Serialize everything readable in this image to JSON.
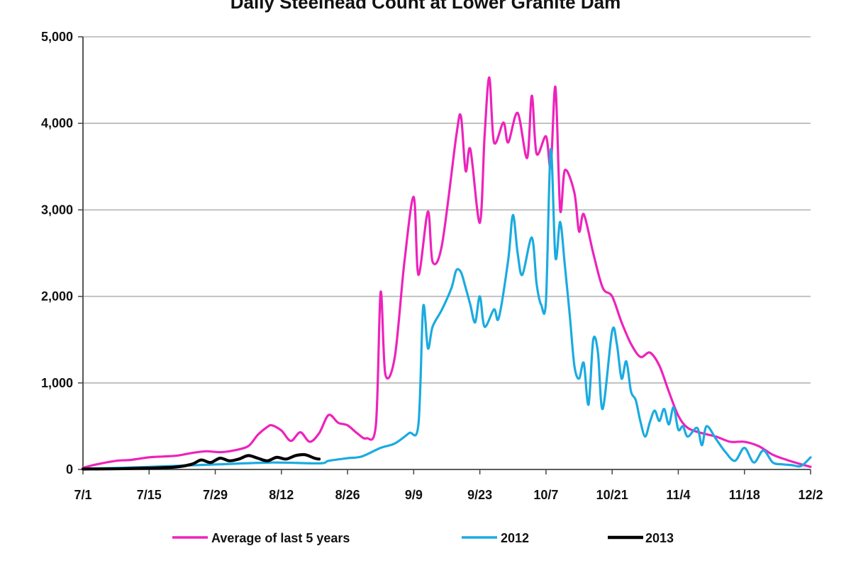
{
  "chart_data": {
    "type": "line",
    "title": "Daily Steelhead Count at Lower Granite Dam",
    "xlabel": "",
    "ylabel": "",
    "x_start_date": "7/1",
    "x_end_date": "12/2",
    "x_tick_labels": [
      "7/1",
      "7/15",
      "7/29",
      "8/12",
      "8/26",
      "9/9",
      "9/23",
      "10/7",
      "10/21",
      "11/4",
      "11/18",
      "12/2"
    ],
    "y_tick_labels": [
      "0",
      "1,000",
      "2,000",
      "3,000",
      "4,000",
      "5,000"
    ],
    "ylim": [
      0,
      5000
    ],
    "grid": "horizontal",
    "legend_position": "bottom",
    "colors": {
      "average": "#ee22bb",
      "s2012": "#1aabe0",
      "s2013": "#000000",
      "grid": "#b4b4b4",
      "axis": "#444444"
    },
    "series": [
      {
        "name": "Average of last 5 years",
        "color": "#ee22bb",
        "points": [
          [
            "7/1",
            20
          ],
          [
            "7/4",
            60
          ],
          [
            "7/8",
            100
          ],
          [
            "7/11",
            110
          ],
          [
            "7/15",
            140
          ],
          [
            "7/18",
            150
          ],
          [
            "7/21",
            160
          ],
          [
            "7/24",
            190
          ],
          [
            "7/27",
            210
          ],
          [
            "7/30",
            200
          ],
          [
            "8/2",
            220
          ],
          [
            "8/5",
            270
          ],
          [
            "8/7",
            400
          ],
          [
            "8/9",
            490
          ],
          [
            "8/10",
            510
          ],
          [
            "8/12",
            450
          ],
          [
            "8/14",
            330
          ],
          [
            "8/16",
            430
          ],
          [
            "8/18",
            320
          ],
          [
            "8/20",
            420
          ],
          [
            "8/22",
            630
          ],
          [
            "8/24",
            540
          ],
          [
            "8/26",
            510
          ],
          [
            "8/28",
            420
          ],
          [
            "8/30",
            360
          ],
          [
            "9/1",
            520
          ],
          [
            "9/2",
            2050
          ],
          [
            "9/3",
            1100
          ],
          [
            "9/5",
            1300
          ],
          [
            "9/7",
            2380
          ],
          [
            "9/9",
            3150
          ],
          [
            "9/10",
            2250
          ],
          [
            "9/12",
            2980
          ],
          [
            "9/13",
            2400
          ],
          [
            "9/15",
            2600
          ],
          [
            "9/18",
            3850
          ],
          [
            "9/19",
            4080
          ],
          [
            "9/20",
            3450
          ],
          [
            "9/21",
            3700
          ],
          [
            "9/23",
            2850
          ],
          [
            "9/24",
            3850
          ],
          [
            "9/25",
            4530
          ],
          [
            "9/26",
            3780
          ],
          [
            "9/28",
            4010
          ],
          [
            "9/29",
            3780
          ],
          [
            "10/1",
            4120
          ],
          [
            "10/3",
            3600
          ],
          [
            "10/4",
            4320
          ],
          [
            "10/5",
            3650
          ],
          [
            "10/7",
            3850
          ],
          [
            "10/8",
            3500
          ],
          [
            "10/9",
            4420
          ],
          [
            "10/10",
            3000
          ],
          [
            "10/11",
            3460
          ],
          [
            "10/13",
            3200
          ],
          [
            "10/14",
            2750
          ],
          [
            "10/15",
            2950
          ],
          [
            "10/17",
            2500
          ],
          [
            "10/19",
            2100
          ],
          [
            "10/21",
            2000
          ],
          [
            "10/23",
            1700
          ],
          [
            "10/25",
            1450
          ],
          [
            "10/27",
            1300
          ],
          [
            "10/29",
            1350
          ],
          [
            "10/31",
            1200
          ],
          [
            "11/2",
            900
          ],
          [
            "11/4",
            620
          ],
          [
            "11/6",
            480
          ],
          [
            "11/9",
            420
          ],
          [
            "11/12",
            380
          ],
          [
            "11/15",
            320
          ],
          [
            "11/18",
            320
          ],
          [
            "11/21",
            270
          ],
          [
            "11/24",
            170
          ],
          [
            "11/27",
            110
          ],
          [
            "11/30",
            60
          ],
          [
            "12/2",
            30
          ]
        ]
      },
      {
        "name": "2012",
        "color": "#1aabe0",
        "points": [
          [
            "7/1",
            10
          ],
          [
            "7/10",
            20
          ],
          [
            "7/20",
            40
          ],
          [
            "7/30",
            60
          ],
          [
            "8/10",
            80
          ],
          [
            "8/20",
            70
          ],
          [
            "8/22",
            100
          ],
          [
            "8/26",
            130
          ],
          [
            "8/29",
            150
          ],
          [
            "9/2",
            250
          ],
          [
            "9/5",
            300
          ],
          [
            "9/8",
            420
          ],
          [
            "9/10",
            520
          ],
          [
            "9/11",
            1880
          ],
          [
            "9/12",
            1400
          ],
          [
            "9/13",
            1650
          ],
          [
            "9/15",
            1850
          ],
          [
            "9/17",
            2100
          ],
          [
            "9/18",
            2300
          ],
          [
            "9/19",
            2280
          ],
          [
            "9/20",
            2100
          ],
          [
            "9/21",
            1900
          ],
          [
            "9/22",
            1700
          ],
          [
            "9/23",
            2000
          ],
          [
            "9/24",
            1650
          ],
          [
            "9/26",
            1850
          ],
          [
            "9/27",
            1750
          ],
          [
            "9/29",
            2420
          ],
          [
            "9/30",
            2940
          ],
          [
            "10/1",
            2500
          ],
          [
            "10/2",
            2250
          ],
          [
            "10/4",
            2680
          ],
          [
            "10/5",
            2150
          ],
          [
            "10/6",
            1900
          ],
          [
            "10/7",
            1950
          ],
          [
            "10/8",
            3700
          ],
          [
            "10/9",
            2450
          ],
          [
            "10/10",
            2860
          ],
          [
            "10/11",
            2350
          ],
          [
            "10/12",
            1800
          ],
          [
            "10/13",
            1200
          ],
          [
            "10/14",
            1050
          ],
          [
            "10/15",
            1230
          ],
          [
            "10/16",
            750
          ],
          [
            "10/17",
            1500
          ],
          [
            "10/18",
            1350
          ],
          [
            "10/19",
            700
          ],
          [
            "10/21",
            1600
          ],
          [
            "10/22",
            1450
          ],
          [
            "10/23",
            1050
          ],
          [
            "10/24",
            1250
          ],
          [
            "10/25",
            900
          ],
          [
            "10/26",
            800
          ],
          [
            "10/27",
            550
          ],
          [
            "10/28",
            380
          ],
          [
            "10/29",
            550
          ],
          [
            "10/30",
            680
          ],
          [
            "10/31",
            560
          ],
          [
            "11/1",
            700
          ],
          [
            "11/2",
            520
          ],
          [
            "11/3",
            720
          ],
          [
            "11/4",
            460
          ],
          [
            "11/5",
            500
          ],
          [
            "11/6",
            380
          ],
          [
            "11/8",
            480
          ],
          [
            "11/9",
            280
          ],
          [
            "11/10",
            500
          ],
          [
            "11/12",
            350
          ],
          [
            "11/14",
            200
          ],
          [
            "11/16",
            100
          ],
          [
            "11/18",
            250
          ],
          [
            "11/20",
            80
          ],
          [
            "11/22",
            220
          ],
          [
            "11/24",
            80
          ],
          [
            "11/26",
            60
          ],
          [
            "11/28",
            50
          ],
          [
            "11/30",
            40
          ],
          [
            "12/2",
            140
          ]
        ]
      },
      {
        "name": "2013",
        "color": "#000000",
        "points": [
          [
            "7/1",
            5
          ],
          [
            "7/10",
            10
          ],
          [
            "7/20",
            25
          ],
          [
            "7/24",
            60
          ],
          [
            "7/26",
            110
          ],
          [
            "7/28",
            80
          ],
          [
            "7/30",
            130
          ],
          [
            "8/1",
            100
          ],
          [
            "8/3",
            120
          ],
          [
            "8/5",
            160
          ],
          [
            "8/7",
            130
          ],
          [
            "8/9",
            100
          ],
          [
            "8/11",
            140
          ],
          [
            "8/13",
            120
          ],
          [
            "8/15",
            160
          ],
          [
            "8/17",
            170
          ],
          [
            "8/19",
            130
          ],
          [
            "8/20",
            120
          ]
        ]
      }
    ]
  }
}
